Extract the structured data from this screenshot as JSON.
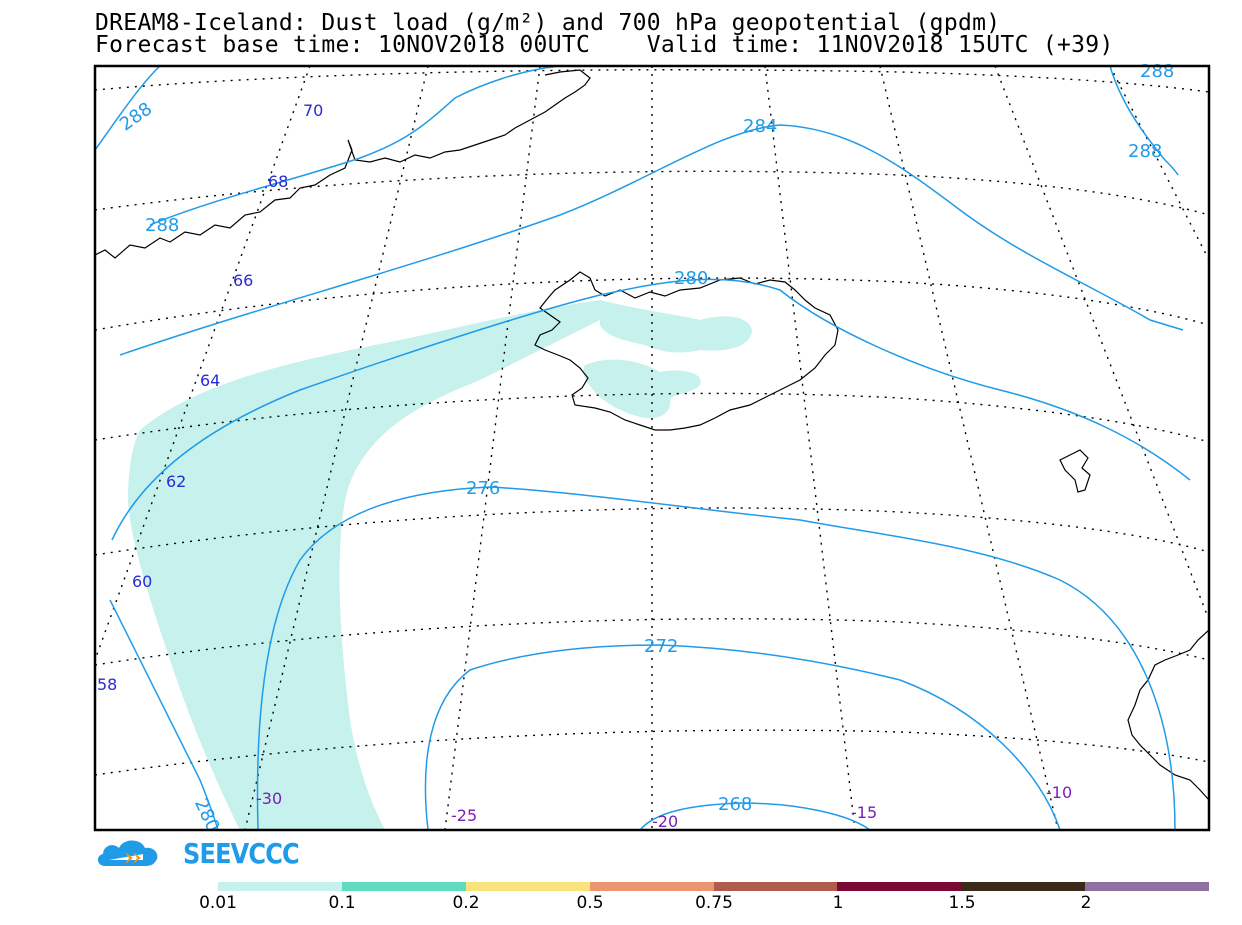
{
  "title": {
    "line1": "DREAM8-Iceland: Dust load (g/m²) and 700 hPa geopotential (gpdm)",
    "line2": "Forecast base time: 10NOV2018 00UTC    Valid time: 11NOV2018 15UTC (+39)"
  },
  "map": {
    "region": "Iceland",
    "latitude_labels": [
      "70",
      "68",
      "66",
      "64",
      "62",
      "60",
      "58"
    ],
    "longitude_labels": [
      "-30",
      "-25",
      "-20",
      "-15",
      "-10"
    ],
    "contour_labels": [
      "288",
      "288",
      "288",
      "288",
      "284",
      "280",
      "276",
      "272",
      "268",
      "280"
    ],
    "colors": {
      "contour": "#1f9be8",
      "dust_lowest": "#c6f1ec",
      "lat_label": "#2a2ad6",
      "lon_label": "#7a1fb5"
    }
  },
  "logo": {
    "text": "SEEVCCC"
  },
  "colorbar": {
    "ticks": [
      "0.01",
      "0.1",
      "0.2",
      "0.5",
      "0.75",
      "1",
      "1.5",
      "2"
    ],
    "colors": [
      "#c6f1ec",
      "#5fdcc0",
      "#f9e37a",
      "#ec9670",
      "#b05b4c",
      "#7a0a33",
      "#3b2a1a",
      "#9070a0"
    ]
  }
}
